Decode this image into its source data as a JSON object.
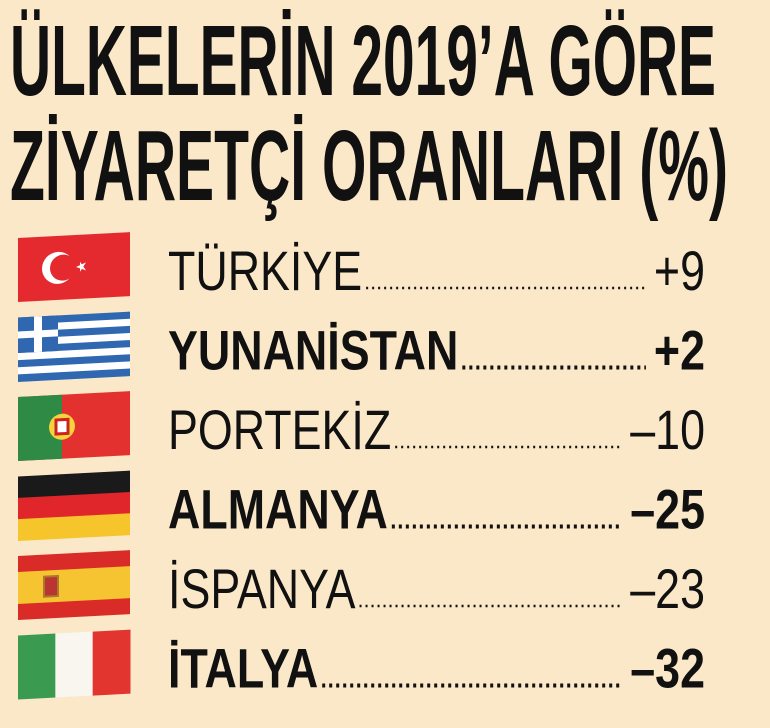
{
  "title": [
    "ÜLKELERİN 2019’A GÖRE",
    "ZİYARETÇİ ORANLARI (%)"
  ],
  "rows": [
    {
      "country": "TÜRKİYE",
      "value": "+9"
    },
    {
      "country": "YUNANİSTAN",
      "value": "+2"
    },
    {
      "country": "PORTEKİZ",
      "value": "–10"
    },
    {
      "country": "ALMANYA",
      "value": "–25"
    },
    {
      "country": "İSPANYA",
      "value": "–23"
    },
    {
      "country": "İTALYA",
      "value": "–32"
    }
  ]
}
